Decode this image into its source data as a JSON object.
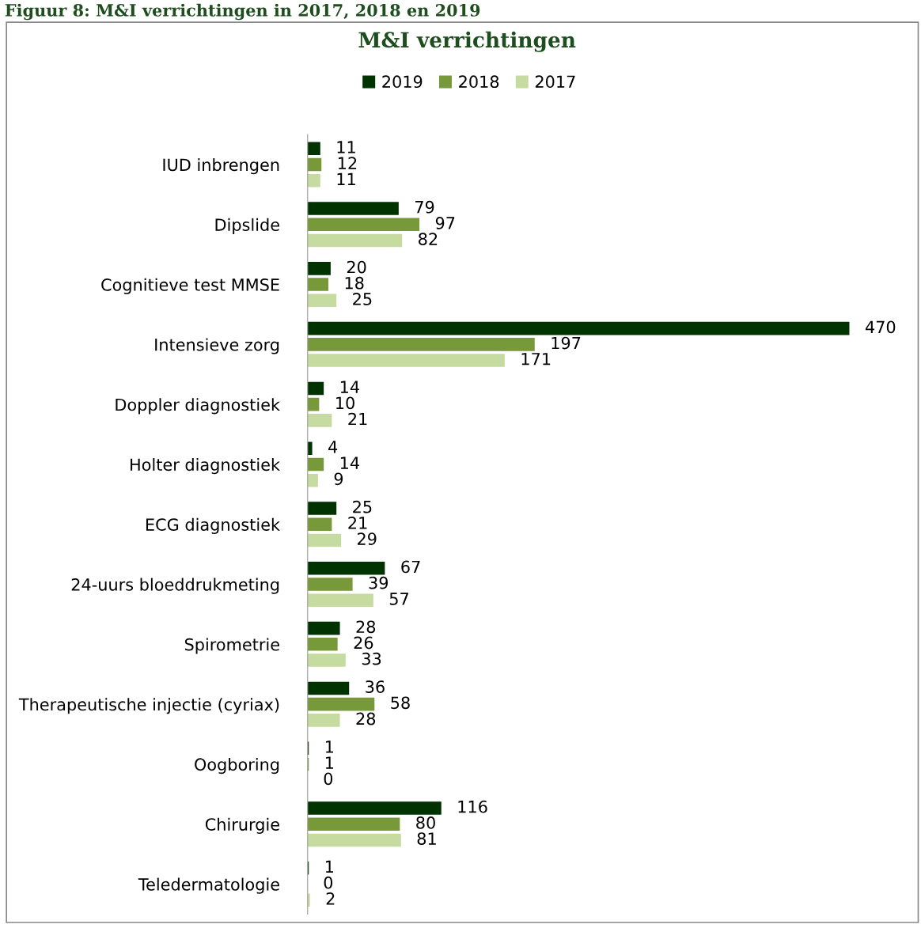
{
  "chart_data": {
    "type": "bar",
    "orientation": "horizontal",
    "title": "M&I verrichtingen",
    "annotations": [
      "Figuur 8: M&I verrichtingen in 2017, 2018 en 2019"
    ],
    "categories": [
      "IUD inbrengen",
      "Dipslide",
      "Cognitieve test MMSE",
      "Intensieve zorg",
      "Doppler diagnostiek",
      "Holter diagnostiek",
      "ECG diagnostiek",
      "24-uurs bloeddrukmeting",
      "Spirometrie",
      "Therapeutische injectie (cyriax)",
      "Oogboring",
      "Chirurgie",
      "Teledermatologie"
    ],
    "series": [
      {
        "name": "2019",
        "color": "#003300",
        "values": [
          11,
          79,
          20,
          470,
          14,
          4,
          25,
          67,
          28,
          36,
          1,
          116,
          1
        ]
      },
      {
        "name": "2018",
        "color": "#77993a",
        "values": [
          12,
          97,
          18,
          197,
          10,
          14,
          21,
          39,
          26,
          58,
          1,
          80,
          0
        ]
      },
      {
        "name": "2017",
        "color": "#c6dba0",
        "values": [
          11,
          82,
          25,
          171,
          21,
          9,
          29,
          57,
          33,
          28,
          0,
          81,
          2
        ]
      }
    ],
    "data_labels": true,
    "legend": "top",
    "grid": false
  }
}
